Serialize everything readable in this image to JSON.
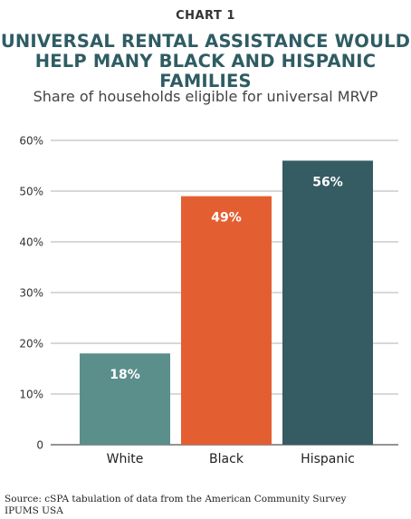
{
  "header": {
    "chart_number": "CHART 1",
    "title_line1": "UNIVERSAL RENTAL ASSISTANCE WOULD",
    "title_line2": "HELP MANY BLACK AND HISPANIC FAMILIES",
    "subtitle": "Share of households eligible for universal MRVP"
  },
  "footer": {
    "source_line1": "Source: cSPA tabulation of data from the American Community Survey",
    "source_line2": "IPUMS USA"
  },
  "chart_data": {
    "type": "bar",
    "title": "UNIVERSAL RENTAL ASSISTANCE WOULD HELP MANY BLACK AND HISPANIC FAMILIES",
    "subtitle": "Share of households eligible for universal MRVP",
    "categories": [
      "White",
      "Black",
      "Hispanic"
    ],
    "values": [
      18,
      49,
      56
    ],
    "data_labels": [
      "18%",
      "49%",
      "56%"
    ],
    "colors": [
      "#5b8f8b",
      "#e35f32",
      "#355b63"
    ],
    "y_ticks": [
      "0",
      "10%",
      "20%",
      "30%",
      "40%",
      "50%",
      "60%"
    ],
    "ylim": [
      0,
      60
    ],
    "grid": true,
    "xlabel": "",
    "ylabel": ""
  }
}
